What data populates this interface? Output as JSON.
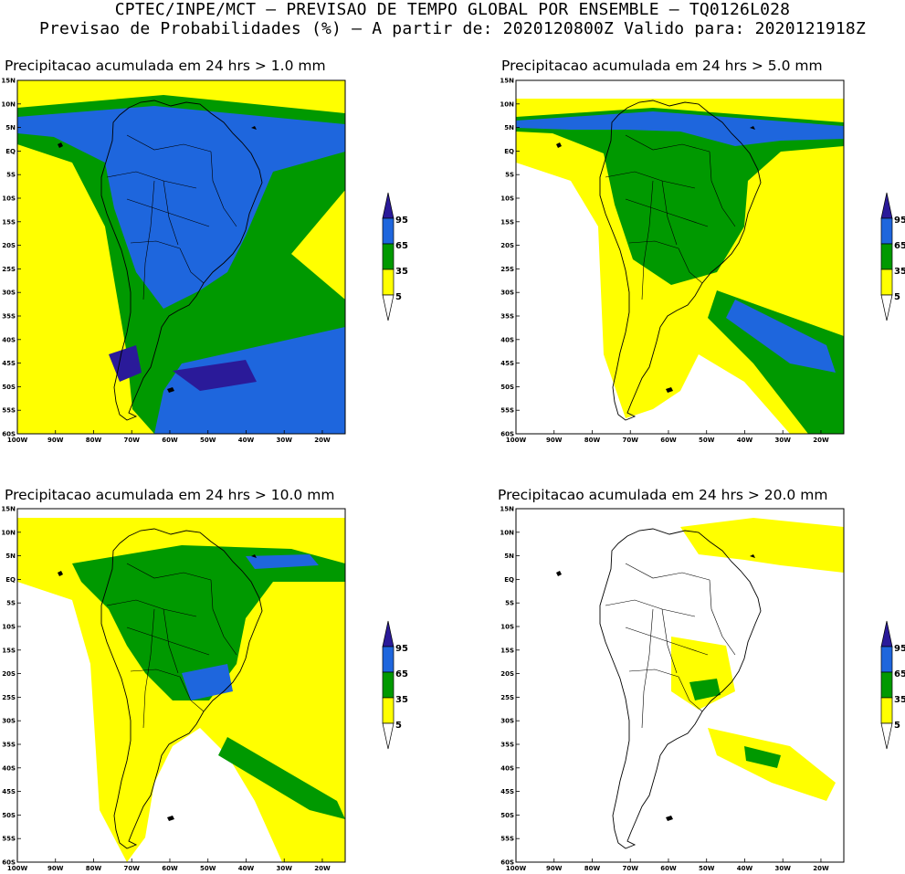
{
  "header": {
    "line1": "CPTEC/INPE/MCT – PREVISAO DE TEMPO GLOBAL POR ENSEMBLE – TQ0126L028",
    "line2": "Previsao de Probabilidades (%) –  A partir de: 2020120800Z  Valido para: 2020121918Z"
  },
  "colors": {
    "p5": "#ffff00",
    "p35": "#009900",
    "p65": "#1e66dd",
    "p95": "#2a1a99",
    "land_outline": "#000000"
  },
  "lat_labels": [
    "15N",
    "10N",
    "5N",
    "EQ",
    "5S",
    "10S",
    "15S",
    "20S",
    "25S",
    "30S",
    "35S",
    "40S",
    "45S",
    "50S",
    "55S",
    "60S"
  ],
  "lon_labels": [
    "100W",
    "90W",
    "80W",
    "70W",
    "60W",
    "50W",
    "40W",
    "30W",
    "20W"
  ],
  "colorbar": {
    "labels": [
      "95",
      "65",
      "35",
      "5"
    ]
  },
  "panels": [
    {
      "title": "Precipitacao acumulada em 24 hrs > 1.0 mm",
      "threshold_mm": 1.0,
      "levels": [
        "p5",
        "p35",
        "p65",
        "p95"
      ]
    },
    {
      "title": "Precipitacao acumulada em 24 hrs > 5.0 mm",
      "threshold_mm": 5.0,
      "levels": [
        "p5",
        "p35",
        "p65",
        "p95"
      ]
    },
    {
      "title": "Precipitacao acumulada em 24 hrs > 10.0 mm",
      "threshold_mm": 10.0,
      "levels": [
        "p5",
        "p35",
        "p65"
      ]
    },
    {
      "title": "Precipitacao acumulada em 24 hrs > 20.0 mm",
      "threshold_mm": 20.0,
      "levels": [
        "p5",
        "p35"
      ]
    }
  ]
}
